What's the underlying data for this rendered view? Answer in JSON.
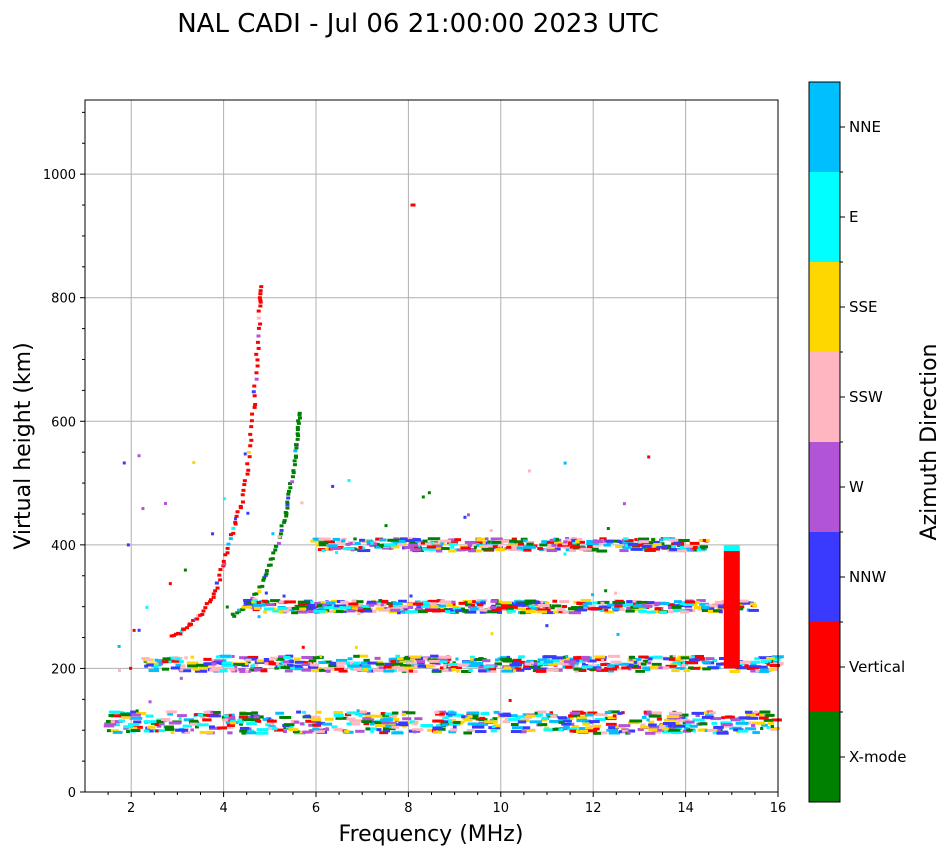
{
  "chart_data": {
    "type": "scatter",
    "title": "NAL CADI - Jul 06 21:00:00 2023 UTC",
    "xlabel": "Frequency (MHz)",
    "ylabel": "Virtual height (km)",
    "xlim": [
      1.0,
      16.0
    ],
    "ylim": [
      0,
      1120
    ],
    "xticks": [
      2,
      4,
      6,
      8,
      10,
      12,
      14,
      16
    ],
    "yticks": [
      0,
      200,
      400,
      600,
      800,
      1000
    ],
    "grid": true,
    "colorbar": {
      "title": "Azimuth Direction",
      "categories": [
        {
          "name": "X-mode",
          "color": "#008000"
        },
        {
          "name": "Vertical",
          "color": "#ff0000"
        },
        {
          "name": "NNW",
          "color": "#3a3aff"
        },
        {
          "name": "W",
          "color": "#b254d6"
        },
        {
          "name": "SSW",
          "color": "#ffb6c1"
        },
        {
          "name": "SSE",
          "color": "#ffd700"
        },
        {
          "name": "E",
          "color": "#00ffff"
        },
        {
          "name": "NNE",
          "color": "#00bfff"
        }
      ]
    },
    "traces": [
      {
        "name": "O-trace F2",
        "category": "Vertical",
        "x": [
          2.9,
          3.2,
          3.5,
          3.8,
          4.0,
          4.2,
          4.4,
          4.55,
          4.65,
          4.72,
          4.78,
          4.8
        ],
        "y": [
          250,
          265,
          285,
          320,
          370,
          420,
          470,
          540,
          620,
          700,
          780,
          820
        ]
      },
      {
        "name": "X-trace F2",
        "category": "X-mode",
        "x": [
          4.2,
          4.5,
          4.8,
          5.0,
          5.2,
          5.35,
          5.45,
          5.55,
          5.6,
          5.65
        ],
        "y": [
          285,
          300,
          330,
          370,
          410,
          450,
          490,
          540,
          580,
          620
        ]
      },
      {
        "name": "E layer echoes",
        "category": "mixed",
        "x_range": [
          1.5,
          16.0
        ],
        "y_range": [
          95,
          130
        ]
      },
      {
        "name": "Second hop E",
        "category": "mixed",
        "x_range": [
          2.3,
          16.0
        ],
        "y_range": [
          195,
          220
        ]
      },
      {
        "name": "Second hop F",
        "category": "mixed",
        "x_range": [
          4.5,
          15.5
        ],
        "y_range": [
          290,
          310
        ]
      },
      {
        "name": "Third hop F",
        "category": "mixed",
        "x_range": [
          6.0,
          14.5
        ],
        "y_range": [
          390,
          410
        ]
      },
      {
        "name": "Vertical streak",
        "category": "Vertical",
        "x": [
          15.0,
          15.0
        ],
        "y": [
          200,
          390
        ]
      }
    ]
  }
}
